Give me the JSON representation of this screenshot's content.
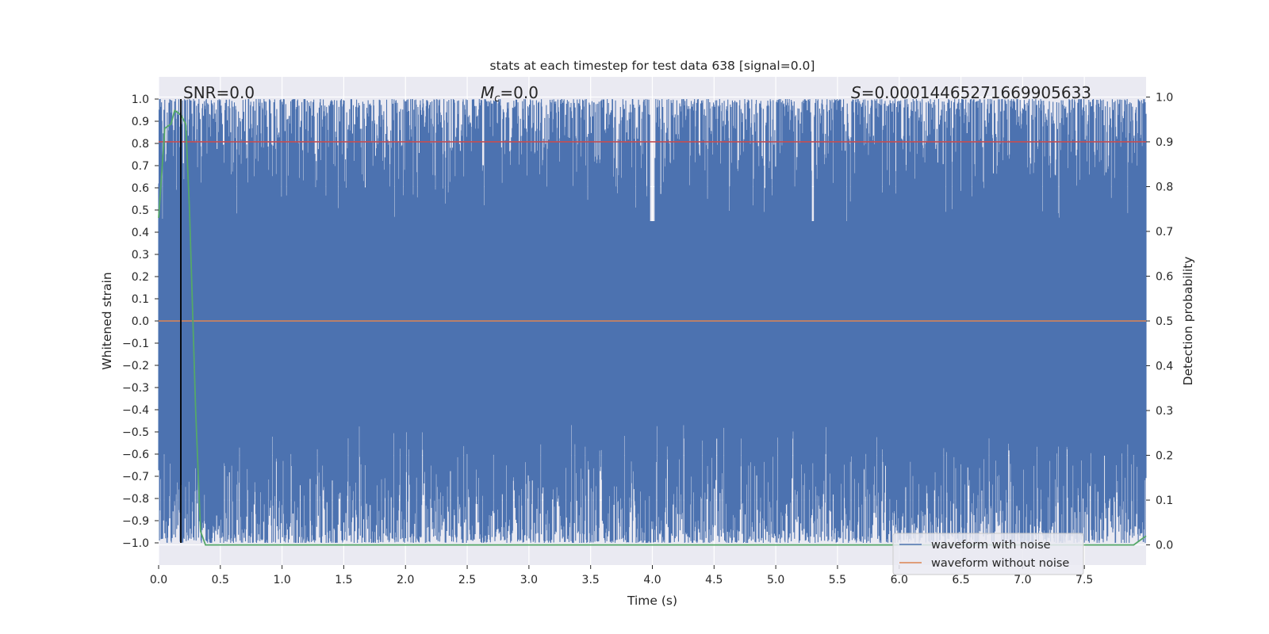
{
  "chart_data": {
    "type": "line",
    "title": "stats at each timestep for test data 638 [signal=0.0]",
    "xlabel": "Time (s)",
    "ylabel": "Whitened strain",
    "y2label": "Detection probability",
    "xlim": [
      0.0,
      8.0
    ],
    "ylim": [
      -1.1,
      1.1
    ],
    "y2lim": [
      -0.045,
      1.045
    ],
    "x_ticks": [
      "0.0",
      "0.5",
      "1.0",
      "1.5",
      "2.0",
      "2.5",
      "3.0",
      "3.5",
      "4.0",
      "4.5",
      "5.0",
      "5.5",
      "6.0",
      "6.5",
      "7.0",
      "7.5"
    ],
    "y_ticks": [
      "1.0",
      "0.9",
      "0.8",
      "0.7",
      "0.6",
      "0.5",
      "0.4",
      "0.3",
      "0.2",
      "0.1",
      "0.0",
      "−0.1",
      "−0.2",
      "−0.3",
      "−0.4",
      "−0.5",
      "−0.6",
      "−0.7",
      "−0.8",
      "−0.9",
      "−1.0"
    ],
    "y2_ticks": [
      "1.0",
      "0.9",
      "0.8",
      "0.7",
      "0.6",
      "0.5",
      "0.4",
      "0.3",
      "0.2",
      "0.1",
      "0.0"
    ],
    "grid": true,
    "legend_position": "bottom-right",
    "annotations": {
      "snr": "SNR=0.0",
      "mc_symbol": "M",
      "mc_sub": "c",
      "mc_value": "=0.0",
      "s_symbol": "S",
      "s_value": "=0.00014465271669905633"
    },
    "series": [
      {
        "name": "waveform with noise",
        "color": "#4c72b0",
        "description_values": "dense noise filling approximately -1.0 to 1.0 across 0–8 s"
      },
      {
        "name": "waveform without noise",
        "color": "#dd8452",
        "x": [
          0.0,
          8.0
        ],
        "y": [
          0.0,
          0.0
        ]
      },
      {
        "axis": "right",
        "color": "#55a868",
        "x": [
          0.0,
          0.05,
          0.1,
          0.13,
          0.18,
          0.22,
          0.25,
          0.3,
          0.34,
          0.38,
          0.45,
          7.9,
          7.95,
          8.0
        ],
        "y": [
          0.73,
          0.93,
          0.94,
          0.97,
          0.96,
          0.94,
          0.75,
          0.3,
          0.03,
          0.0,
          0.0,
          0.0,
          0.01,
          0.02
        ]
      }
    ],
    "threshold_line": {
      "axis": "right",
      "value": 0.9,
      "color": "#c44e52"
    },
    "marker_line": {
      "x": 0.18,
      "color": "#000000"
    },
    "colors": {
      "axes_bg": "#eaeaf2",
      "grid": "#ffffff",
      "noise": "#4c72b0",
      "clean": "#dd8452",
      "prob": "#55a868",
      "threshold": "#c44e52"
    }
  }
}
